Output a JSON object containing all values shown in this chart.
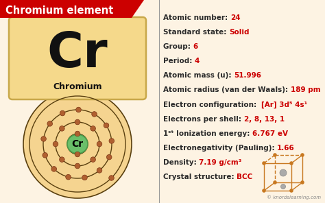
{
  "bg_color": "#fdf3e3",
  "title": "Chromium element",
  "title_bg": "#cc0000",
  "title_color": "#ffffff",
  "symbol": "Cr",
  "element_name": "Chromium",
  "element_box_color": "#f5d98b",
  "element_box_edge": "#c8a84b",
  "divider_color": "#999999",
  "info_label_color": "#2a2a2a",
  "info_value_color": "#cc0000",
  "properties": [
    {
      "label": "Atomic number: ",
      "value": "24"
    },
    {
      "label": "Standard state: ",
      "value": "Solid"
    },
    {
      "label": "Group: ",
      "value": "6"
    },
    {
      "label": "Period: ",
      "value": "4"
    },
    {
      "label": "Atomic mass (u): ",
      "value": "51.996"
    },
    {
      "label": "Atomic radius (van der Waals): ",
      "value": "189 pm"
    },
    {
      "label": "Electron configuration:  ",
      "value": "[Ar] 3d⁵ 4s¹"
    },
    {
      "label": "Electrons per shell: ",
      "value": "2, 8, 13, 1"
    },
    {
      "label": "1ˢᵗ Ionization energy: ",
      "value": "6.767 eV"
    },
    {
      "label": "Electronegativity (Pauling): ",
      "value": "1.66"
    },
    {
      "label": "Density: ",
      "value": "7.19 g/cm³"
    },
    {
      "label": "Crystal structure: ",
      "value": "BCC"
    }
  ],
  "watermark": "© knordslearning.com",
  "shell_electrons": [
    2,
    8,
    13,
    1
  ],
  "nucleus_color": "#6abf6a",
  "nucleus_edge": "#4a9a4a",
  "orbit_color": "#5a4010",
  "electron_color": "#b06030",
  "orbit_bg": "#f5d490",
  "cube_color": "#c87820",
  "label_fontsize": 7.5,
  "value_fontsize": 7.5
}
